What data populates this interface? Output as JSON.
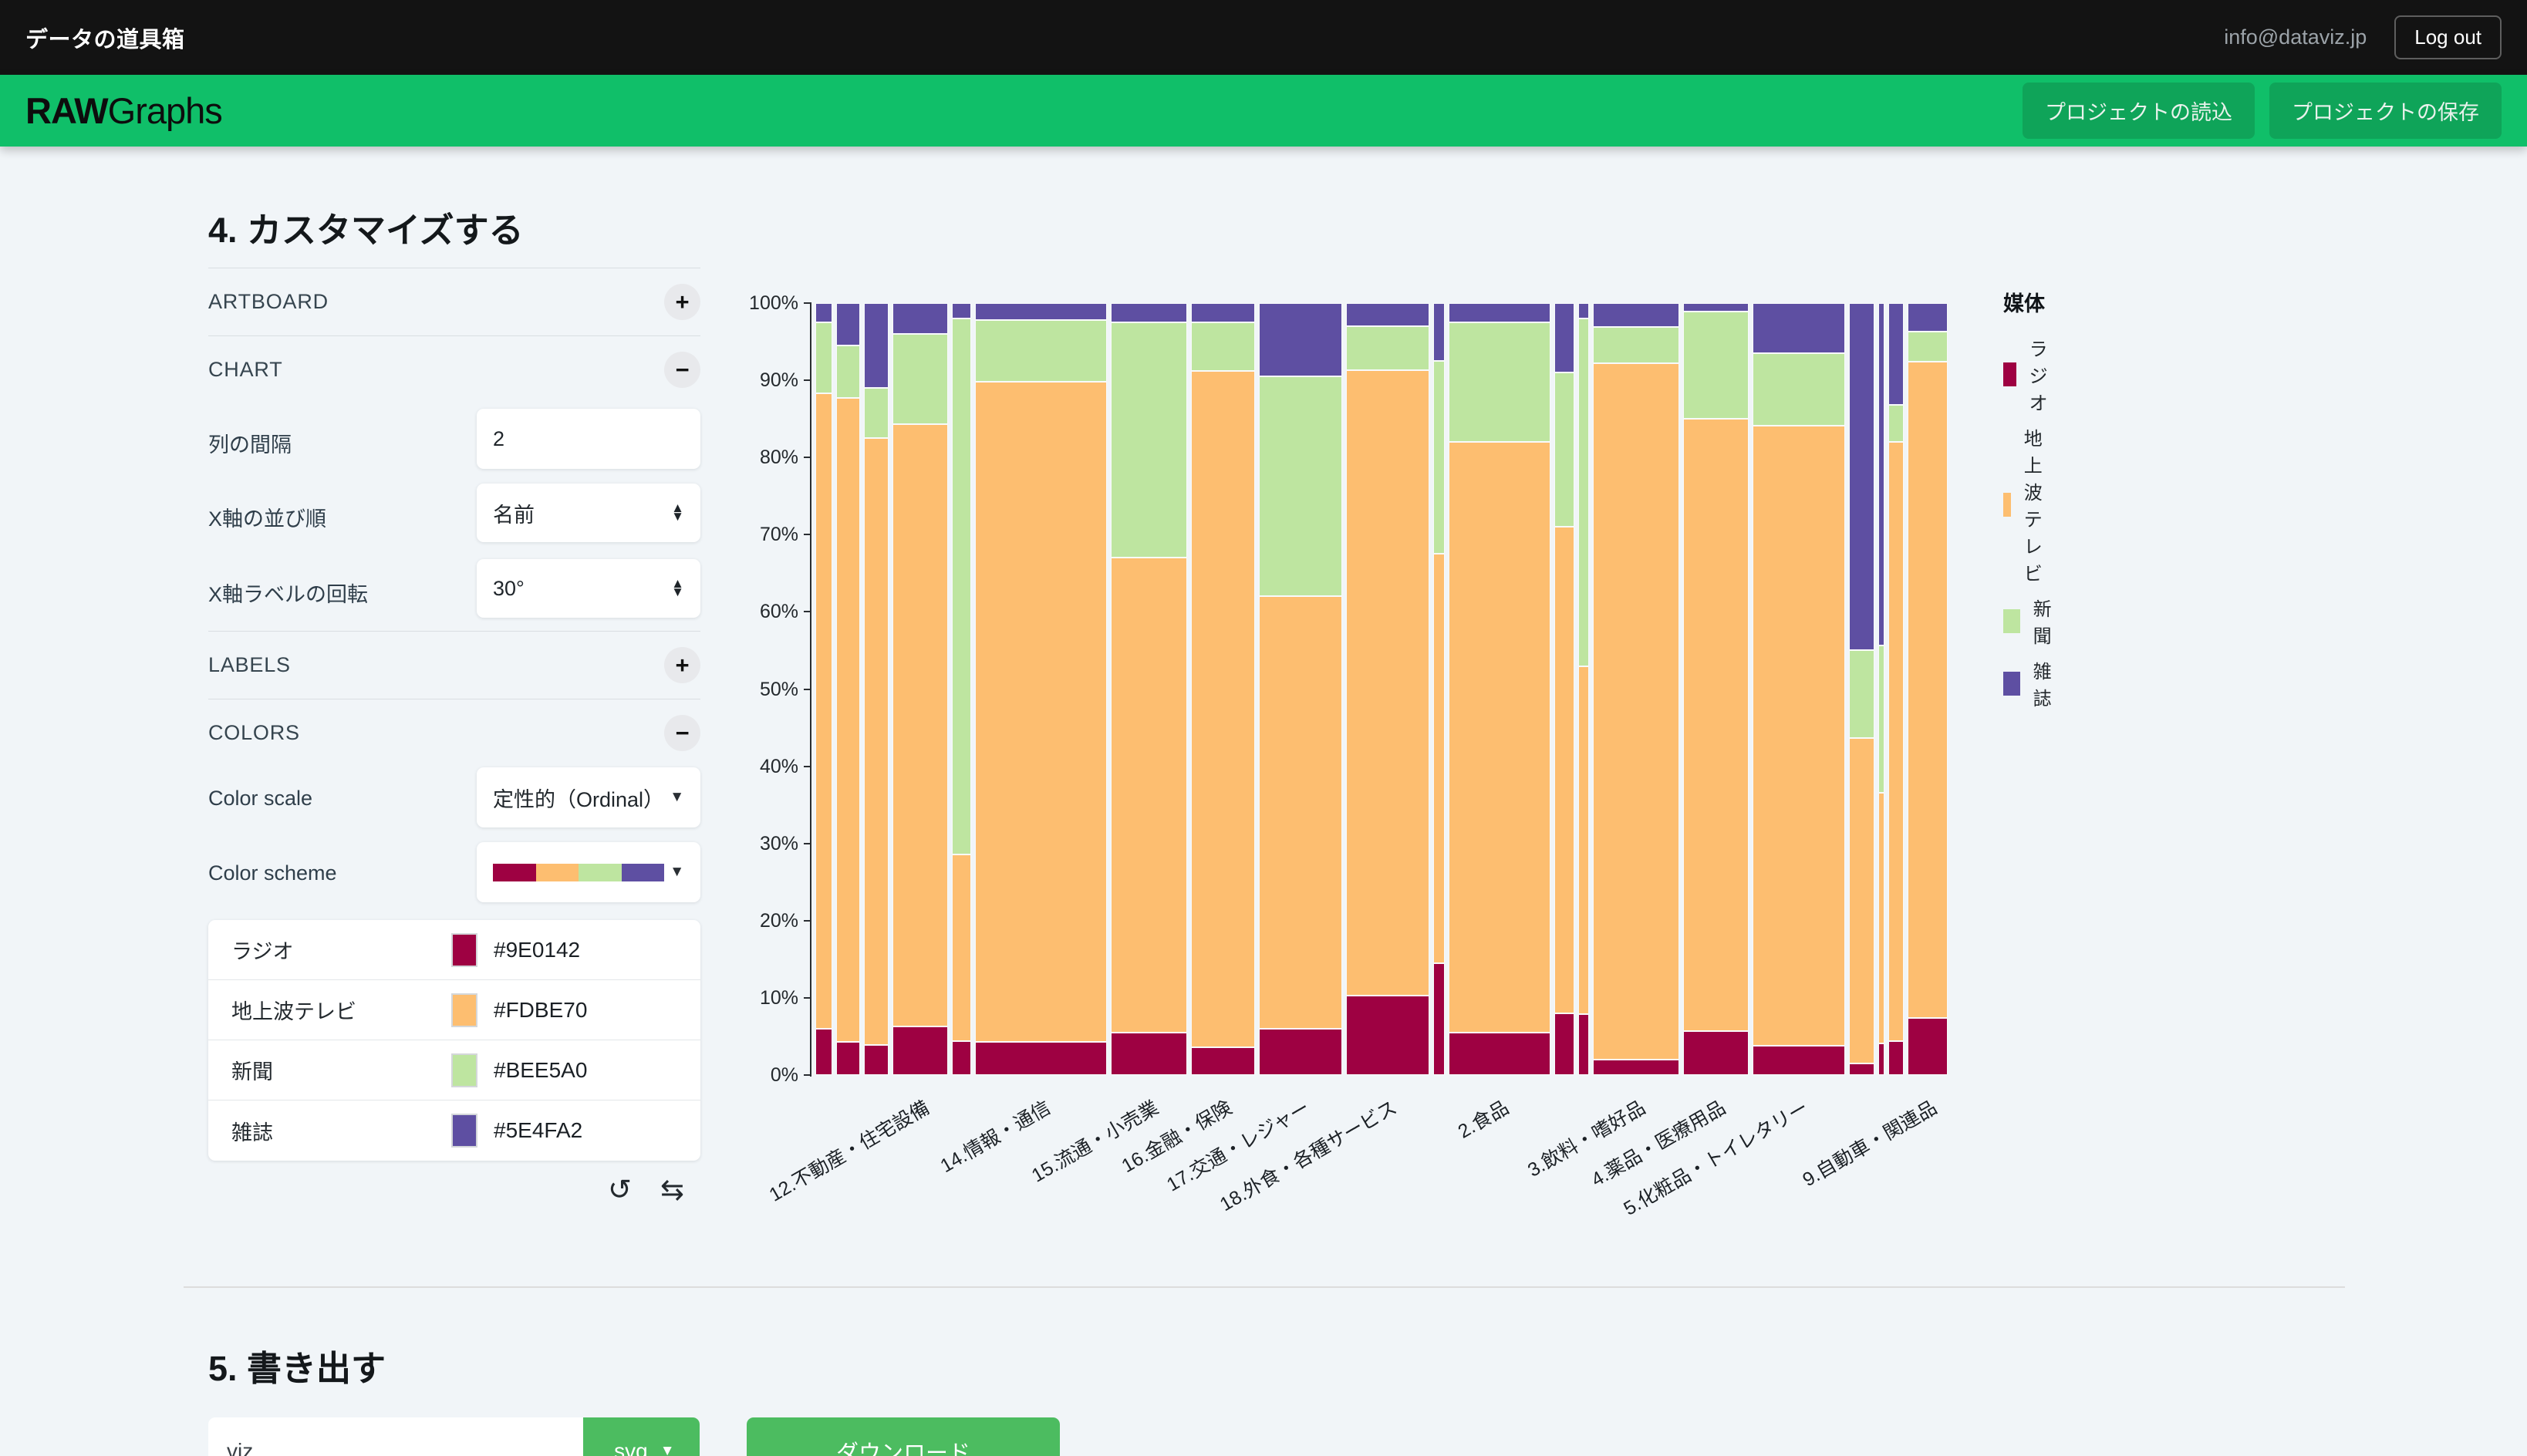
{
  "top_bar": {
    "app_title": "データの道具箱",
    "email": "info@dataviz.jp",
    "logout_label": "Log out"
  },
  "header": {
    "brand_bold": "RAW",
    "brand_regular": "Graphs",
    "open_project_label": "プロジェクトの読込",
    "save_project_label": "プロジェクトの保存"
  },
  "customize": {
    "section_title": "4. カスタマイズする",
    "panels": {
      "artboard": "ARTBOARD",
      "chart": "CHART",
      "labels": "LABELS",
      "colors": "COLORS"
    },
    "panel_toggles": {
      "artboard": "+",
      "chart": "−",
      "labels": "+",
      "colors": "−"
    },
    "chart_options": [
      {
        "label": "列の間隔",
        "value": "2"
      },
      {
        "label": "X軸の並び順",
        "value": "名前"
      },
      {
        "label": "X軸ラベルの回転",
        "value": "30°"
      }
    ],
    "color_options": {
      "color_scale_label": "Color scale",
      "color_scale_value": "定性的（Ordinal）",
      "color_scheme_label": "Color scheme",
      "scheme_swatches": [
        "#9E0142",
        "#FDBE70",
        "#BEE5A0",
        "#5E4FA2"
      ],
      "color_rows": [
        {
          "label": "ラジオ",
          "hex": "#9E0142"
        },
        {
          "label": "地上波テレビ",
          "hex": "#FDBE70"
        },
        {
          "label": "新聞",
          "hex": "#BEE5A0"
        },
        {
          "label": "雑誌",
          "hex": "#5E4FA2"
        }
      ]
    }
  },
  "export": {
    "section_title": "5. 書き出す",
    "filename_value": "viz",
    "format_value": ".svg",
    "download_label": "ダウンロード"
  },
  "chart_data": {
    "type": "bar",
    "subtype": "marimekko-100-percent-stacked",
    "legend_title": "媒体",
    "series": [
      "ラジオ",
      "地上波テレビ",
      "新聞",
      "雑誌"
    ],
    "colors": [
      "#9E0142",
      "#FDBE70",
      "#BEE5A0",
      "#5E4FA2"
    ],
    "ylim": [
      0,
      100
    ],
    "y_ticks": [
      "0%",
      "10%",
      "20%",
      "30%",
      "40%",
      "50%",
      "60%",
      "70%",
      "80%",
      "90%",
      "100%"
    ],
    "x_label_rotation_deg": 30,
    "grid": false,
    "legend_position": "right",
    "bars": [
      {
        "label": "",
        "width": 22,
        "values": [
          6,
          82.3,
          9.2,
          2.5
        ]
      },
      {
        "label": "",
        "width": 30,
        "values": [
          4.3,
          83.4,
          6.8,
          5.5
        ]
      },
      {
        "label": "",
        "width": 32,
        "values": [
          3.9,
          78.6,
          6.5,
          11
        ]
      },
      {
        "label": "12.不動産・住宅設備",
        "width": 71,
        "values": [
          6.3,
          78,
          11.7,
          4
        ]
      },
      {
        "label": "",
        "width": 25,
        "values": [
          4.4,
          24.2,
          69.4,
          2
        ]
      },
      {
        "label": "14.情報・通信",
        "width": 169,
        "values": [
          4.3,
          85.5,
          8,
          2.2
        ]
      },
      {
        "label": "15.流通・小売業",
        "width": 97,
        "values": [
          5.5,
          61.5,
          30.5,
          2.5
        ]
      },
      {
        "label": "16.金融・保険",
        "width": 82,
        "values": [
          3.6,
          87.6,
          6.3,
          2.5
        ]
      },
      {
        "label": "17.交通・レジャー",
        "width": 107,
        "values": [
          6,
          56,
          28.5,
          9.5
        ]
      },
      {
        "label": "18.外食・各種サービス",
        "width": 107,
        "values": [
          10.3,
          81,
          5.7,
          3
        ]
      },
      {
        "label": "",
        "width": 14,
        "values": [
          14.5,
          53,
          25,
          7.5
        ]
      },
      {
        "label": "2.食品",
        "width": 131,
        "values": [
          5.5,
          76.5,
          15.5,
          2.5
        ]
      },
      {
        "label": "",
        "width": 26,
        "values": [
          8,
          63,
          20,
          9
        ]
      },
      {
        "label": "",
        "width": 13,
        "values": [
          7.9,
          45,
          45.1,
          2
        ]
      },
      {
        "label": "3.飲料・嗜好品",
        "width": 111,
        "values": [
          2,
          90.2,
          4.7,
          3.1
        ]
      },
      {
        "label": "4.薬品・医療用品",
        "width": 84,
        "values": [
          5.7,
          79.3,
          13.9,
          1.1
        ]
      },
      {
        "label": "5.化粧品・トイレタリー",
        "width": 118,
        "values": [
          3.8,
          80.3,
          9.4,
          6.5
        ]
      },
      {
        "label": "",
        "width": 33,
        "values": [
          1.5,
          42.2,
          11.3,
          45
        ]
      },
      {
        "label": "",
        "width": 8,
        "values": [
          4.1,
          32.5,
          19,
          44.4
        ]
      },
      {
        "label": "",
        "width": 20,
        "values": [
          4.4,
          77.6,
          4.8,
          13.2
        ]
      },
      {
        "label": "9.自動車・関連品",
        "width": 51,
        "values": [
          7.4,
          85,
          3.9,
          3.7
        ]
      }
    ]
  }
}
